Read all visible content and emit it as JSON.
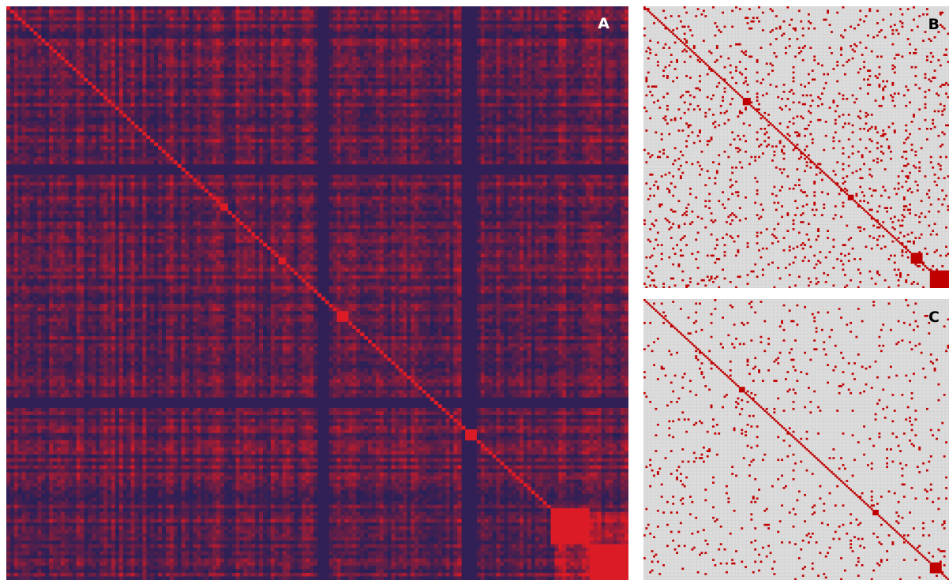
{
  "chart_data": [
    {
      "type": "heatmap",
      "panel_label": "A",
      "title": "",
      "xlabel": "",
      "ylabel": "",
      "grid": false,
      "n_rows": 160,
      "n_cols": 160,
      "colors": {
        "low": "#0c2160",
        "high": "#ff1a1a"
      },
      "diagonal": "high",
      "diagonal_blocks": [
        {
          "start": 55,
          "end": 57
        },
        {
          "start": 70,
          "end": 72
        },
        {
          "start": 85,
          "end": 88
        },
        {
          "start": 118,
          "end": 121
        },
        {
          "start": 140,
          "end": 150
        },
        {
          "start": 150,
          "end": 160
        }
      ],
      "dark_bands": [
        {
          "axis": "col",
          "start": 117,
          "end": 121
        },
        {
          "axis": "row",
          "start": 109,
          "end": 112
        },
        {
          "axis": "col",
          "start": 80,
          "end": 83
        },
        {
          "axis": "row",
          "start": 44,
          "end": 47
        }
      ]
    },
    {
      "type": "heatmap",
      "panel_label": "B",
      "title": "",
      "xlabel": "",
      "ylabel": "",
      "grid": true,
      "n_rows": 160,
      "n_cols": 160,
      "colors": {
        "background": "#dcdcdc",
        "mark": "#c00000"
      },
      "diagonal": "marked",
      "density": 0.055,
      "diagonal_blocks": [
        {
          "start": 52,
          "end": 56
        },
        {
          "start": 107,
          "end": 110
        },
        {
          "start": 140,
          "end": 146
        },
        {
          "start": 150,
          "end": 160
        }
      ]
    },
    {
      "type": "heatmap",
      "panel_label": "C",
      "title": "",
      "xlabel": "",
      "ylabel": "",
      "grid": true,
      "n_rows": 160,
      "n_cols": 160,
      "colors": {
        "background": "#dcdcdc",
        "mark": "#c00000"
      },
      "diagonal": "marked",
      "density": 0.03,
      "diagonal_blocks": [
        {
          "start": 50,
          "end": 53
        },
        {
          "start": 120,
          "end": 123
        },
        {
          "start": 150,
          "end": 156
        }
      ]
    }
  ]
}
